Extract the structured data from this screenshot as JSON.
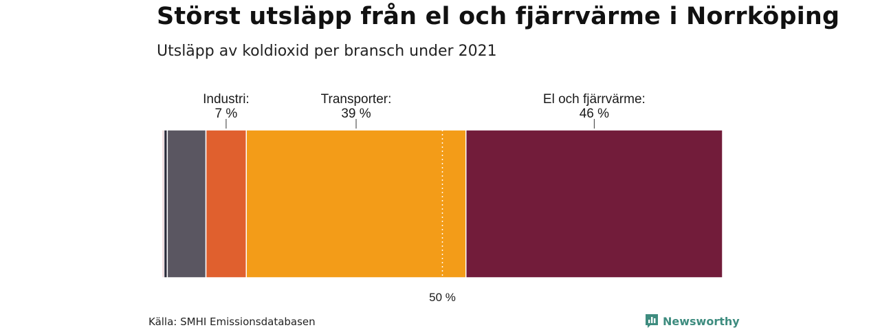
{
  "header": {
    "title": "Störst utsläpp från el och fjärrvärme i Norrköping",
    "subtitle": "Utsläpp av koldioxid per bransch under 2021"
  },
  "footer": {
    "source": "Källa: SMHI Emissionsdatabasen",
    "brand": "Newsworthy"
  },
  "colors": {
    "tiny_1": "#d9a0a8",
    "tiny_2": "#2b2b3a",
    "other": "#5a5661",
    "industri": "#e0602e",
    "transporter": "#f39c18",
    "el": "#721c3a"
  },
  "chart_data": {
    "type": "bar",
    "orientation": "horizontal-stacked-100",
    "title": "Störst utsläpp från el och fjärrvärme i Norrköping",
    "subtitle": "Utsläpp av koldioxid per bransch under 2021",
    "xlim": [
      0,
      100
    ],
    "unit": "%",
    "segments": [
      {
        "name": "",
        "value": 0.3,
        "color": "#d9a0a8",
        "label": "",
        "value_label": ""
      },
      {
        "name": "",
        "value": 0.6,
        "color": "#2b2b3a",
        "label": "",
        "value_label": ""
      },
      {
        "name": "",
        "value": 6.9,
        "color": "#5a5661",
        "label": "",
        "value_label": ""
      },
      {
        "name": "Industri",
        "value": 7.2,
        "color": "#e0602e",
        "label": "Industri:",
        "value_label": "7 %"
      },
      {
        "name": "Transporter",
        "value": 39.2,
        "color": "#f39c18",
        "label": "Transporter:",
        "value_label": "39 %"
      },
      {
        "name": "El och fjärrvärme",
        "value": 45.8,
        "color": "#721c3a",
        "label": "El och fjärrvärme:",
        "value_label": "46 %"
      }
    ],
    "reference_line": {
      "value": 50,
      "label": "50 %"
    }
  }
}
